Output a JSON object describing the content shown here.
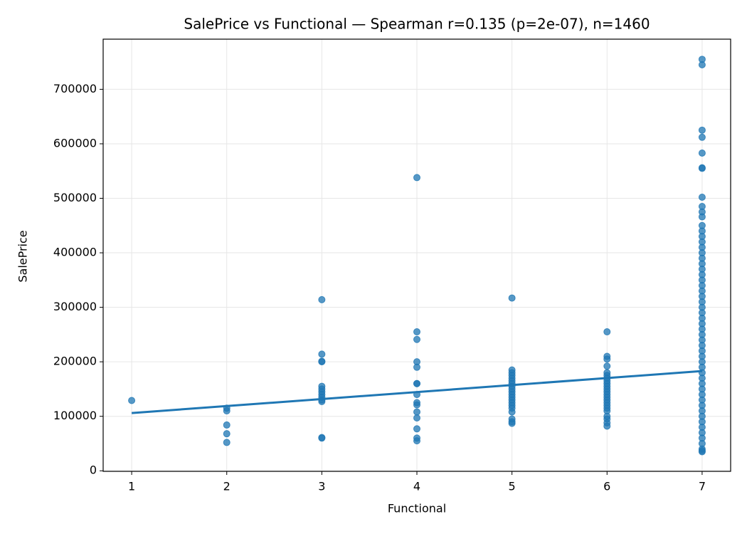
{
  "chart_data": {
    "type": "scatter",
    "title": "SalePrice vs Functional — Spearman r=0.135 (p=2e-07), n=1460",
    "xlabel": "Functional",
    "ylabel": "SalePrice",
    "xlim": [
      0.7,
      7.3
    ],
    "ylim": [
      -1000,
      792000
    ],
    "xticks": [
      1,
      2,
      3,
      4,
      5,
      6,
      7
    ],
    "yticks": [
      0,
      100000,
      200000,
      300000,
      400000,
      500000,
      600000,
      700000
    ],
    "grid": true,
    "color": "#1f77b4",
    "groups": [
      {
        "x": 1,
        "values": [
          129000
        ]
      },
      {
        "x": 2,
        "values": [
          115000,
          110000,
          84000,
          68000,
          52000
        ]
      },
      {
        "x": 3,
        "values": [
          314000,
          214000,
          201000,
          200000,
          155000,
          150000,
          145000,
          140000,
          135000,
          130000,
          127000,
          61000,
          60000
        ]
      },
      {
        "x": 4,
        "values": [
          538000,
          255000,
          241000,
          200000,
          190000,
          160000,
          160000,
          140000,
          125000,
          121000,
          108000,
          97000,
          77000,
          60000,
          55000
        ]
      },
      {
        "x": 5,
        "values": [
          317000,
          185000,
          180000,
          175000,
          170000,
          165000,
          160000,
          155000,
          150000,
          145000,
          140000,
          135000,
          130000,
          125000,
          120000,
          115000,
          108000,
          95000,
          90000,
          87000
        ]
      },
      {
        "x": 6,
        "values": [
          255000,
          210000,
          205000,
          192000,
          180000,
          175000,
          170000,
          165000,
          160000,
          155000,
          150000,
          145000,
          140000,
          135000,
          130000,
          125000,
          120000,
          115000,
          110000,
          100000,
          95000,
          88000,
          82000
        ]
      },
      {
        "x": 7,
        "values": [
          755000,
          745000,
          625000,
          612000,
          583000,
          556000,
          555000,
          502000,
          485000,
          475000,
          466000,
          450000,
          440000,
          430000,
          420000,
          410000,
          400000,
          390000,
          380000,
          370000,
          360000,
          350000,
          340000,
          330000,
          320000,
          310000,
          300000,
          290000,
          280000,
          270000,
          260000,
          250000,
          240000,
          230000,
          220000,
          210000,
          200000,
          190000,
          180000,
          170000,
          160000,
          150000,
          140000,
          130000,
          120000,
          110000,
          100000,
          90000,
          80000,
          70000,
          60000,
          50000,
          40000,
          37000,
          35000
        ]
      }
    ],
    "fit": {
      "x": [
        1,
        7
      ],
      "values": [
        106000,
        183000
      ],
      "color": "#1f77b4"
    }
  }
}
